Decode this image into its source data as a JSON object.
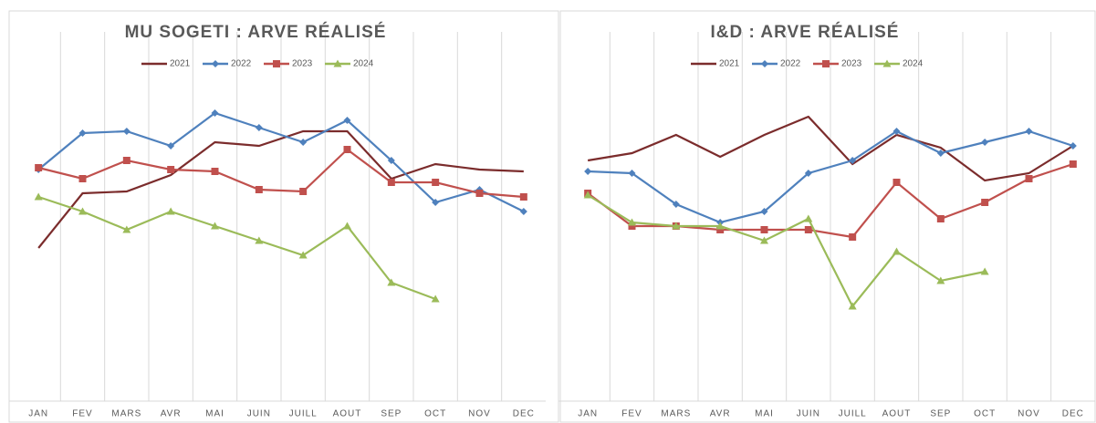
{
  "chart_data": [
    {
      "type": "line",
      "title": "MU SOGETI : ARVE RÉALISÉ",
      "categories": [
        "JAN",
        "FEV",
        "MARS",
        "AVR",
        "MAI",
        "JUIN",
        "JUILL",
        "AOUT",
        "SEP",
        "OCT",
        "NOV",
        "DEC"
      ],
      "ylim": [
        0,
        100
      ],
      "series": [
        {
          "name": "2021",
          "color": "#7b2c2c",
          "marker": "none",
          "values": [
            42,
            57,
            57.5,
            62,
            71,
            70,
            74,
            74,
            61,
            65,
            63.5,
            63
          ]
        },
        {
          "name": "2022",
          "color": "#4f81bd",
          "marker": "diamond",
          "values": [
            63.5,
            73.5,
            74,
            70,
            79,
            75,
            71,
            77,
            66,
            54.5,
            58,
            52
          ]
        },
        {
          "name": "2023",
          "color": "#c0504d",
          "marker": "square",
          "values": [
            64,
            61,
            66,
            63.5,
            63,
            58,
            57.5,
            69,
            60,
            60,
            57,
            56
          ]
        },
        {
          "name": "2024",
          "color": "#9bbb59",
          "marker": "triangle",
          "values": [
            56,
            52,
            47,
            52,
            48,
            44,
            40,
            48,
            32.5,
            28,
            null,
            null
          ]
        }
      ]
    },
    {
      "type": "line",
      "title": "I&D : ARVE RÉALISÉ",
      "categories": [
        "JAN",
        "FEV",
        "MARS",
        "AVR",
        "MAI",
        "JUIN",
        "JUILL",
        "AOUT",
        "SEP",
        "OCT",
        "NOV",
        "DEC"
      ],
      "ylim": [
        0,
        100
      ],
      "series": [
        {
          "name": "2021",
          "color": "#7b2c2c",
          "marker": "none",
          "values": [
            66,
            68,
            73,
            67,
            73,
            78,
            65,
            73,
            69.5,
            60.5,
            62.5,
            70
          ]
        },
        {
          "name": "2022",
          "color": "#4f81bd",
          "marker": "diamond",
          "values": [
            63,
            62.5,
            54,
            49,
            52,
            62.5,
            66,
            74,
            68,
            71,
            74,
            70
          ]
        },
        {
          "name": "2023",
          "color": "#c0504d",
          "marker": "square",
          "values": [
            57,
            48,
            48,
            47,
            47,
            47,
            45,
            60,
            50,
            54.5,
            61,
            65
          ]
        },
        {
          "name": "2024",
          "color": "#9bbb59",
          "marker": "triangle",
          "values": [
            56.5,
            49,
            48,
            48,
            44,
            50,
            26,
            41,
            33,
            35.5,
            null,
            null
          ]
        }
      ]
    }
  ]
}
